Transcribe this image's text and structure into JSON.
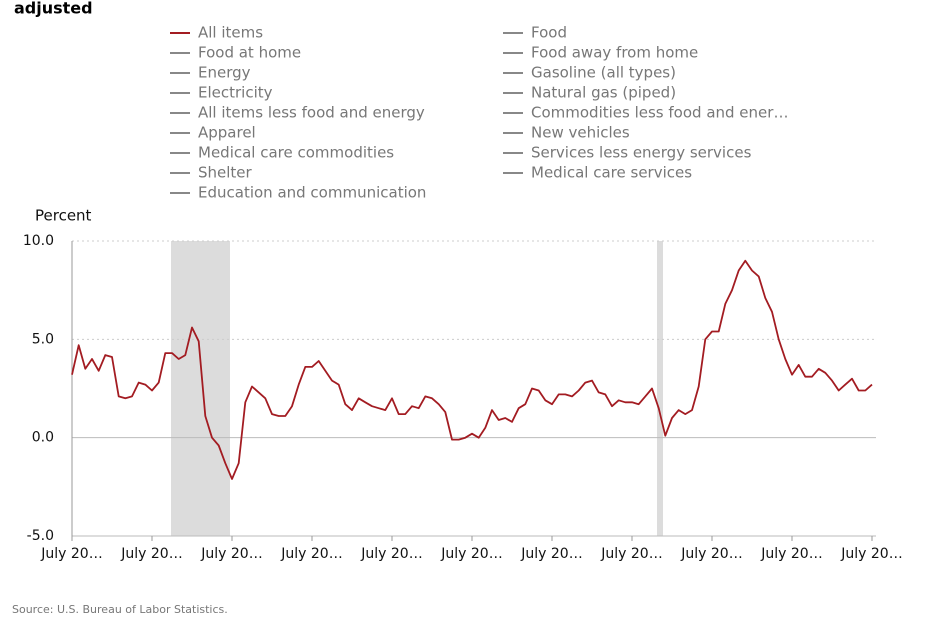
{
  "chart_data": {
    "type": "line",
    "title": "adjusted",
    "y_label": "Percent",
    "source": "Source: U.S. Bureau of Labor Statistics.",
    "categories": [
      "July 20…",
      null,
      null,
      null,
      null,
      null,
      null,
      null,
      null,
      null,
      null,
      null,
      "July 20…",
      null,
      null,
      null,
      null,
      null,
      null,
      null,
      null,
      null,
      null,
      null,
      "July 20…",
      null,
      null,
      null,
      null,
      null,
      null,
      null,
      null,
      null,
      null,
      null,
      "July 20…",
      null,
      null,
      null,
      null,
      null,
      null,
      null,
      null,
      null,
      null,
      null,
      "July 20…",
      null,
      null,
      null,
      null,
      null,
      null,
      null,
      null,
      null,
      null,
      null,
      "July 20…",
      null,
      null,
      null,
      null,
      null,
      null,
      null,
      null,
      null,
      null,
      null,
      "July 20…",
      null,
      null,
      null,
      null,
      null,
      null,
      null,
      null,
      null,
      null,
      null,
      "July 20…",
      null,
      null,
      null,
      null,
      null,
      null,
      null,
      null,
      null,
      null,
      null,
      "July 20…",
      null,
      null,
      null,
      null,
      null,
      null,
      null,
      null,
      null,
      null,
      null,
      "July 20…",
      null,
      null,
      null,
      null,
      null,
      null,
      null,
      null,
      null,
      null,
      null,
      "July 20…"
    ],
    "series": [
      {
        "name": "All items",
        "color": "#a31c22",
        "values": [
          3.2,
          4.7,
          3.5,
          4.0,
          3.4,
          4.2,
          4.1,
          2.1,
          2.0,
          2.1,
          2.8,
          2.7,
          2.4,
          2.8,
          4.3,
          4.3,
          4.0,
          4.2,
          5.6,
          4.9,
          1.1,
          0.0,
          -0.4,
          -1.3,
          -2.1,
          -1.3,
          1.8,
          2.6,
          2.3,
          2.0,
          1.2,
          1.1,
          1.1,
          1.6,
          2.7,
          3.6,
          3.6,
          3.9,
          3.4,
          2.9,
          2.7,
          1.7,
          1.4,
          2.0,
          1.8,
          1.6,
          1.5,
          1.4,
          2.0,
          1.2,
          1.2,
          1.6,
          1.5,
          2.1,
          2.0,
          1.7,
          1.3,
          -0.1,
          -0.1,
          0.0,
          0.2,
          0.0,
          0.5,
          1.4,
          0.9,
          1.0,
          0.8,
          1.5,
          1.7,
          2.5,
          2.4,
          1.9,
          1.7,
          2.2,
          2.2,
          2.1,
          2.4,
          2.8,
          2.9,
          2.3,
          2.2,
          1.6,
          1.9,
          1.8,
          1.8,
          1.7,
          2.1,
          2.5,
          1.5,
          0.1,
          1.0,
          1.4,
          1.2,
          1.4,
          2.6,
          5.0,
          5.4,
          5.4,
          6.8,
          7.5,
          8.5,
          9.0,
          8.5,
          8.2,
          7.1,
          6.4,
          5.0,
          4.0,
          3.2,
          3.7,
          3.1,
          3.1,
          3.5,
          3.3,
          2.9,
          2.4,
          2.7,
          3.0,
          2.4,
          2.4,
          2.7
        ]
      }
    ],
    "inactive_series": [
      {
        "name": "Food",
        "color": "#888888"
      },
      {
        "name": "Food at home",
        "color": "#888888"
      },
      {
        "name": "Food away from home",
        "color": "#888888"
      },
      {
        "name": "Energy",
        "color": "#888888"
      },
      {
        "name": "Gasoline (all types)",
        "color": "#888888"
      },
      {
        "name": "Electricity",
        "color": "#888888"
      },
      {
        "name": "Natural gas (piped)",
        "color": "#888888"
      },
      {
        "name": "All items less food and energy",
        "color": "#888888"
      },
      {
        "name": "Commodities less food and ener…",
        "color": "#888888"
      },
      {
        "name": "Apparel",
        "color": "#888888"
      },
      {
        "name": "New vehicles",
        "color": "#888888"
      },
      {
        "name": "Medical care commodities",
        "color": "#888888"
      },
      {
        "name": "Services less energy services",
        "color": "#888888"
      },
      {
        "name": "Shelter",
        "color": "#888888"
      },
      {
        "name": "Medical care services",
        "color": "#888888"
      },
      {
        "name": "Education and communication",
        "color": "#888888"
      }
    ],
    "ylim": [
      -5,
      10
    ],
    "yticks": [
      {
        "value": -5,
        "label": "-5.0"
      },
      {
        "value": 0,
        "label": "0.0"
      },
      {
        "value": 5,
        "label": "5.0"
      },
      {
        "value": 10,
        "label": "10.0"
      }
    ],
    "grid": true
  }
}
